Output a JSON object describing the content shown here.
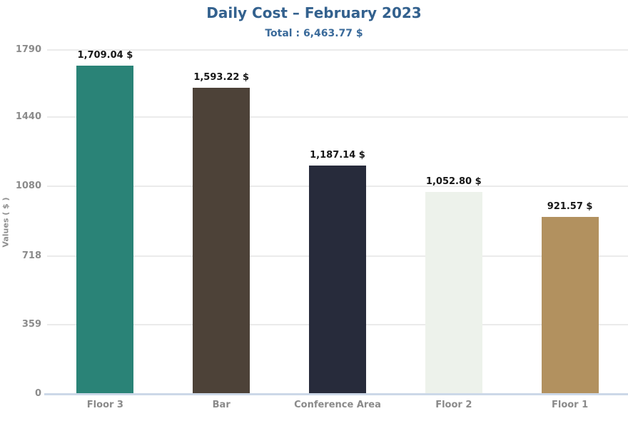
{
  "chart_data": {
    "type": "bar",
    "title": "Daily Cost – February 2023",
    "subtitle": "Total : 6,463.77 $",
    "ylabel": "Values ( $ )",
    "xlabel": "",
    "categories": [
      "Floor 3",
      "Bar",
      "Conference Area",
      "Floor 2",
      "Floor 1"
    ],
    "values": [
      1709.04,
      1593.22,
      1187.14,
      1052.8,
      921.57
    ],
    "value_labels": [
      "1,709.04 $",
      "1,593.22 $",
      "1,187.14 $",
      "1,052.80 $",
      "921.57 $"
    ],
    "bar_colors": [
      "#2a8377",
      "#4d4238",
      "#272b3b",
      "#edf2eb",
      "#b2915f"
    ],
    "yticks": [
      0,
      359,
      718,
      1080,
      1440,
      1790
    ],
    "ytick_labels": [
      "0",
      "359",
      "718",
      "1080",
      "1440",
      "1790"
    ],
    "ylim": [
      0,
      1790
    ],
    "grid": true,
    "legend": "none"
  },
  "colors": {
    "title_text": "#33618e",
    "subtitle_text": "#3a6a9a",
    "axis_text": "#8b8b8b",
    "value_label_text": "#161616",
    "gridline": "#ebebeb",
    "baseline": "#ccd8e8",
    "background": "#ffffff"
  }
}
